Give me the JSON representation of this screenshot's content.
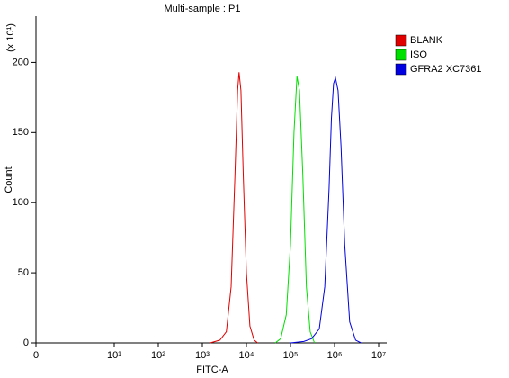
{
  "chart_data": {
    "type": "line",
    "title": "Multi-sample : P1",
    "xlabel": "FITC-A",
    "ylabel": "Count",
    "ymultiplier": "(x 10¹)",
    "xscale": "log",
    "xlim": [
      0,
      16000000
    ],
    "ylim": [
      0,
      233
    ],
    "xticks": [
      0,
      {
        "value": 10,
        "label": "10¹"
      },
      {
        "value": 100,
        "label": "10²"
      },
      {
        "value": 1000,
        "label": "10³"
      },
      {
        "value": 10000,
        "label": "10⁴"
      },
      {
        "value": 100000,
        "label": "10⁵"
      },
      {
        "value": 1000000,
        "label": "10⁶"
      },
      {
        "value": 10000000,
        "label": "10⁷"
      }
    ],
    "yticks": [
      0,
      50,
      100,
      150,
      200
    ],
    "legend": "top-right",
    "series": [
      {
        "name": "BLANK",
        "color": "#e00000",
        "x": [
          1500,
          2500,
          3500,
          4500,
          5500,
          6300,
          6800,
          7500,
          8500,
          10000,
          12000,
          15000,
          18000
        ],
        "values": [
          0,
          2,
          8,
          40,
          120,
          180,
          193,
          180,
          120,
          50,
          12,
          2,
          0
        ]
      },
      {
        "name": "ISO",
        "color": "#00e000",
        "x": [
          45000,
          60000,
          80000,
          100000,
          120000,
          140000,
          160000,
          190000,
          230000,
          280000,
          350000
        ],
        "values": [
          0,
          3,
          20,
          70,
          150,
          190,
          180,
          120,
          40,
          8,
          0
        ]
      },
      {
        "name": "GFRA2 XC7361",
        "color": "#0000e0",
        "x": [
          100000,
          200000,
          300000,
          450000,
          600000,
          750000,
          850000,
          950000,
          1050000,
          1200000,
          1400000,
          1700000,
          2200000,
          3000000,
          4000000
        ],
        "values": [
          0,
          1,
          3,
          10,
          40,
          110,
          160,
          185,
          189,
          180,
          140,
          70,
          15,
          2,
          0
        ]
      }
    ]
  }
}
